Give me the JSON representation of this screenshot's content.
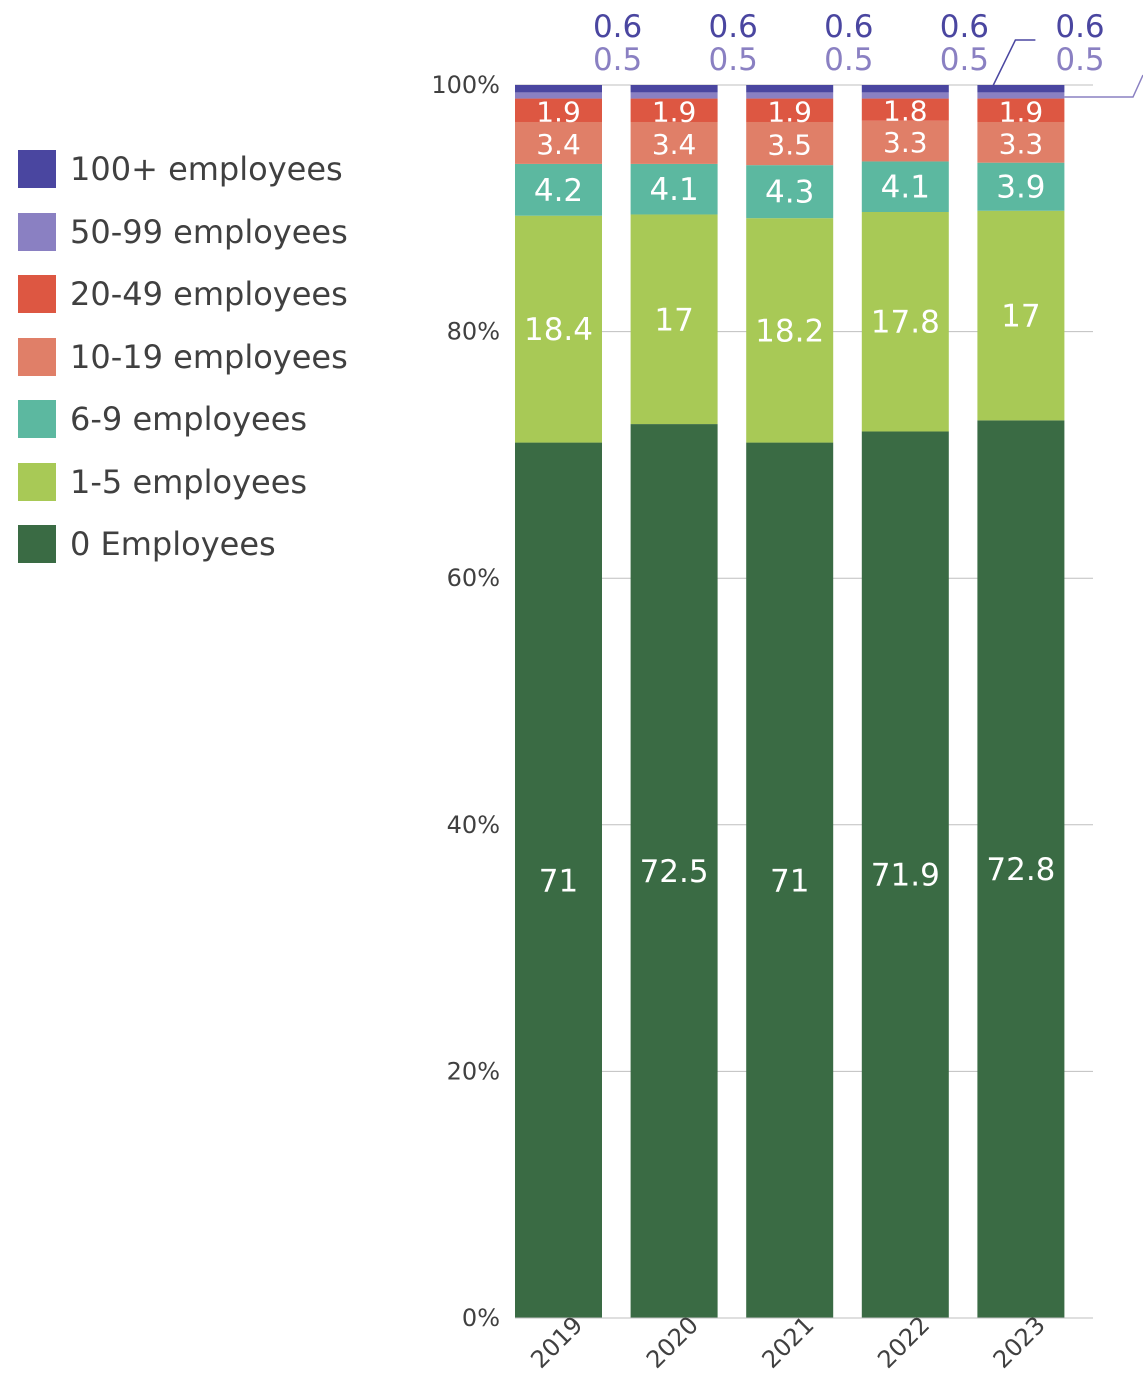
{
  "chart_data": {
    "type": "bar",
    "stacked": true,
    "normalized": true,
    "categories": [
      "2019",
      "2020",
      "2021",
      "2022",
      "2023"
    ],
    "series": [
      {
        "name": "0 Employees",
        "color": "#3a6b44",
        "values": [
          71,
          72.5,
          71,
          71.9,
          72.8
        ]
      },
      {
        "name": "1-5 employees",
        "color": "#a8c956",
        "values": [
          18.4,
          17,
          18.2,
          17.8,
          17
        ]
      },
      {
        "name": "6-9 employees",
        "color": "#5cb8a0",
        "values": [
          4.2,
          4.1,
          4.3,
          4.1,
          3.9
        ]
      },
      {
        "name": "10-19 employees",
        "color": "#e07f68",
        "values": [
          3.4,
          3.4,
          3.5,
          3.3,
          3.3
        ]
      },
      {
        "name": "20-49 employees",
        "color": "#dd5742",
        "values": [
          1.9,
          1.9,
          1.9,
          1.8,
          1.9
        ]
      },
      {
        "name": "50-99 employees",
        "color": "#8a80c2",
        "values": [
          0.5,
          0.5,
          0.5,
          0.5,
          0.5
        ]
      },
      {
        "name": "100+ employees",
        "color": "#4a46a0",
        "values": [
          0.6,
          0.6,
          0.6,
          0.6,
          0.6
        ]
      }
    ],
    "yticks": [
      "0%",
      "20%",
      "40%",
      "60%",
      "80%",
      "100%"
    ],
    "ylim": [
      0,
      100
    ],
    "title": "",
    "xlabel": "",
    "ylabel": "",
    "grid": true,
    "legend_position": "left"
  }
}
